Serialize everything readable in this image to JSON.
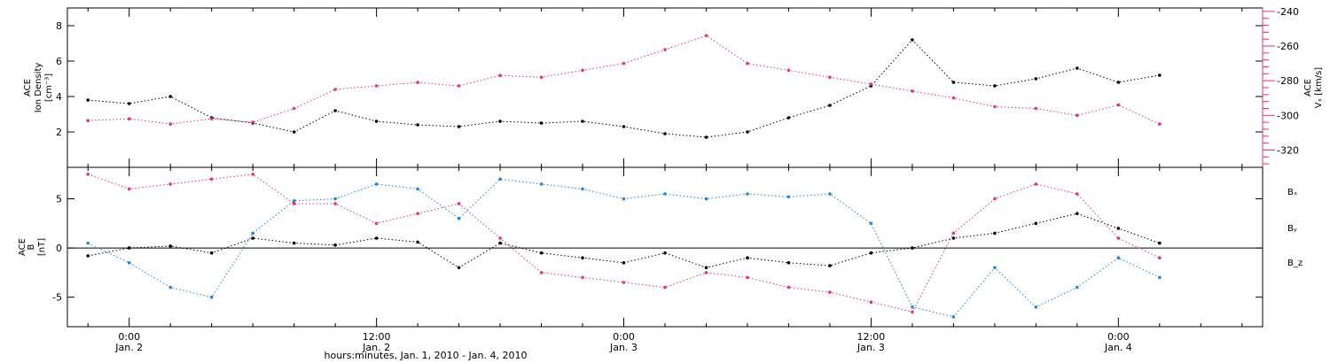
{
  "chart_data": [
    {
      "type": "scatter",
      "ylabel_line1": "ACE",
      "ylabel_line2": "Ion Density",
      "ylabel_units": "[cm⁻³]",
      "ylim": [
        0,
        9
      ],
      "yticks": [
        2,
        4,
        6,
        8
      ],
      "secondary_axis": {
        "ylabel_line1": "ACE",
        "ylabel_line2": "Vₓ [km/s]",
        "ylim": [
          -330,
          -238
        ],
        "yticks": [
          -320,
          -300,
          -280,
          -260,
          -240
        ],
        "color": "#e8336b"
      },
      "series": [
        {
          "name": "",
          "color": "#000000",
          "axis": "left",
          "x": [
            -2,
            0,
            2,
            4,
            6,
            8,
            10,
            12,
            14,
            16,
            18,
            20,
            22,
            24,
            26,
            28,
            30,
            32,
            34,
            36,
            38,
            40,
            42,
            44,
            46,
            48,
            50
          ],
          "y": [
            3.8,
            3.6,
            4.0,
            2.8,
            2.5,
            2.0,
            3.2,
            2.6,
            2.4,
            2.3,
            2.6,
            2.5,
            2.6,
            2.3,
            1.9,
            1.7,
            2.0,
            2.8,
            3.5,
            4.6,
            7.2,
            4.8,
            4.6,
            5.0,
            5.6,
            4.8,
            5.2
          ]
        },
        {
          "name": "",
          "color": "#e8336b",
          "axis": "right",
          "x": [
            -2,
            0,
            2,
            4,
            6,
            8,
            10,
            12,
            14,
            16,
            18,
            20,
            22,
            24,
            26,
            28,
            30,
            32,
            34,
            36,
            38,
            40,
            42,
            44,
            46,
            48,
            50
          ],
          "y": [
            -303,
            -302,
            -305,
            -302,
            -304,
            -296,
            -285,
            -283,
            -281,
            -283,
            -277,
            -278,
            -274,
            -270,
            -262,
            -254,
            -270,
            -274,
            -278,
            -282,
            -286,
            -290,
            -295,
            -296,
            -300,
            -294,
            -305
          ]
        }
      ]
    },
    {
      "type": "scatter",
      "ylabel_line1": "ACE",
      "ylabel_line2": "B",
      "ylabel_units": "[nT]",
      "ylim": [
        -8,
        8.2
      ],
      "yticks": [
        -5,
        0,
        5
      ],
      "zero_line": true,
      "series": [
        {
          "name": "Bₓ",
          "color": "#000000",
          "x": [
            -2,
            0,
            2,
            4,
            6,
            8,
            10,
            12,
            14,
            16,
            18,
            20,
            22,
            24,
            26,
            28,
            30,
            32,
            34,
            36,
            38,
            40,
            42,
            44,
            46,
            48,
            50
          ],
          "y": [
            -0.8,
            0.0,
            0.2,
            -0.5,
            1.0,
            0.5,
            0.3,
            1.0,
            0.6,
            -2.0,
            0.5,
            -0.5,
            -1.0,
            -1.5,
            -0.5,
            -2.0,
            -1.0,
            -1.5,
            -1.8,
            -0.5,
            0.0,
            1.0,
            1.5,
            2.5,
            3.5,
            2.0,
            0.5
          ]
        },
        {
          "name": "Bᵧ",
          "color": "#1a88e0",
          "x": [
            -2,
            0,
            2,
            4,
            6,
            8,
            10,
            12,
            14,
            16,
            18,
            20,
            22,
            24,
            26,
            28,
            30,
            32,
            34,
            36,
            38,
            40,
            42,
            44,
            46,
            48,
            50
          ],
          "y": [
            0.5,
            -1.5,
            -4.0,
            -5.0,
            1.5,
            4.8,
            5.0,
            6.5,
            6.0,
            3.0,
            7.0,
            6.5,
            6.0,
            5.0,
            5.5,
            5.0,
            5.5,
            5.2,
            5.5,
            2.5,
            -6.0,
            -7.0,
            -2.0,
            -6.0,
            -4.0,
            -1.0,
            -3.0
          ]
        },
        {
          "name": "B_z",
          "color": "#e8336b",
          "x": [
            -2,
            0,
            2,
            4,
            6,
            8,
            10,
            12,
            14,
            16,
            18,
            20,
            22,
            24,
            26,
            28,
            30,
            32,
            34,
            36,
            38,
            40,
            42,
            44,
            46,
            48,
            50
          ],
          "y": [
            7.5,
            6.0,
            6.5,
            7.0,
            7.5,
            4.5,
            4.5,
            2.5,
            3.5,
            4.5,
            1.0,
            -2.5,
            -3.0,
            -3.5,
            -4.0,
            -2.5,
            -3.0,
            -4.0,
            -4.5,
            -5.5,
            -6.5,
            1.5,
            5.0,
            6.5,
            5.5,
            1.0,
            -1.0
          ]
        }
      ]
    }
  ],
  "x_axis": {
    "xlim": [
      -3,
      55
    ],
    "ticks": [
      {
        "x": 0,
        "time": "0:00",
        "date": "Jan. 2"
      },
      {
        "x": 12,
        "time": "12:00",
        "date": "Jan. 2"
      },
      {
        "x": 24,
        "time": "0:00",
        "date": "Jan. 3"
      },
      {
        "x": 36,
        "time": "12:00",
        "date": "Jan. 3"
      },
      {
        "x": 48,
        "time": "0:00",
        "date": "Jan. 4"
      }
    ],
    "xlabel": "hours:minutes, Jan. 1, 2010 - Jan. 4, 2010"
  },
  "legend": [
    {
      "text": "Bₓ",
      "color": "#000000"
    },
    {
      "text": "Bᵧ",
      "color": "#1a88e0"
    },
    {
      "text": "B_z",
      "color": "#e8336b"
    }
  ]
}
